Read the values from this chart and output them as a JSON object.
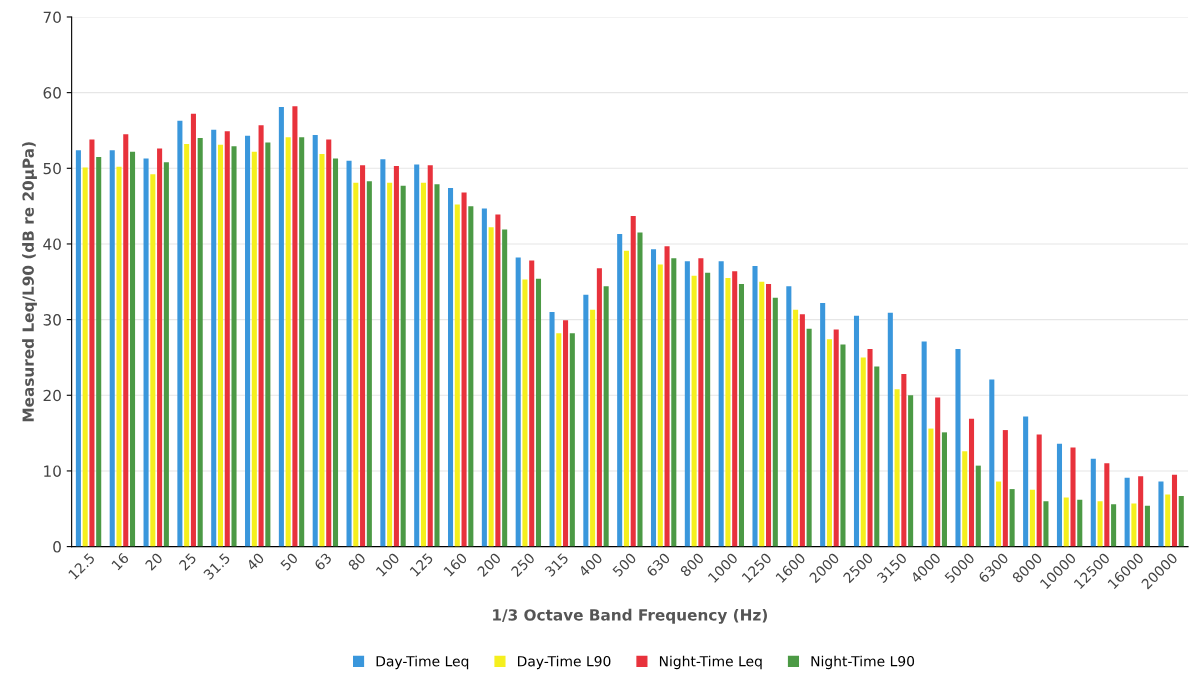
{
  "chart_data": {
    "type": "bar",
    "xlabel": "1/3 Octave Band Frequency (Hz)",
    "ylabel": "Measured Leq/L90 (dB re 20µPa)",
    "categories": [
      "12.5",
      "16",
      "20",
      "25",
      "31.5",
      "40",
      "50",
      "63",
      "80",
      "100",
      "125",
      "160",
      "200",
      "250",
      "315",
      "400",
      "500",
      "630",
      "800",
      "1000",
      "1250",
      "1600",
      "2000",
      "2500",
      "3150",
      "4000",
      "5000",
      "6300",
      "8000",
      "10000",
      "12500",
      "16000",
      "20000"
    ],
    "series": [
      {
        "name": "Day-Time Leq",
        "color": "#3a97dc",
        "values": [
          52.4,
          52.4,
          51.3,
          56.3,
          55.1,
          54.3,
          58.1,
          54.4,
          51.0,
          51.2,
          50.5,
          47.4,
          44.7,
          38.2,
          31.0,
          33.3,
          41.3,
          39.3,
          37.7,
          37.7,
          37.1,
          34.4,
          32.2,
          30.5,
          30.9,
          27.1,
          26.1,
          22.1,
          17.2,
          13.6,
          11.6,
          9.1,
          8.6
        ]
      },
      {
        "name": "Day-Time L90",
        "color": "#f5ef1e",
        "values": [
          50.1,
          50.2,
          49.2,
          53.2,
          53.1,
          52.2,
          54.1,
          51.9,
          48.1,
          48.1,
          48.1,
          45.2,
          42.2,
          35.3,
          28.2,
          31.3,
          39.1,
          37.3,
          35.8,
          35.5,
          35.0,
          31.3,
          27.4,
          25.0,
          20.8,
          15.6,
          12.6,
          8.6,
          7.5,
          6.5,
          6.0,
          5.7,
          6.9
        ]
      },
      {
        "name": "Night-Time Leq",
        "color": "#e8323c",
        "values": [
          53.8,
          54.5,
          52.6,
          57.2,
          54.9,
          55.7,
          58.2,
          53.8,
          50.4,
          50.3,
          50.4,
          46.8,
          43.9,
          37.8,
          29.9,
          36.8,
          43.7,
          39.7,
          38.1,
          36.4,
          34.7,
          30.7,
          28.7,
          26.1,
          22.8,
          19.7,
          16.9,
          15.4,
          14.8,
          13.1,
          11.0,
          9.3,
          9.5
        ]
      },
      {
        "name": "Night-Time L90",
        "color": "#4c9a45",
        "values": [
          51.5,
          52.2,
          50.8,
          54.0,
          52.9,
          53.4,
          54.1,
          51.3,
          48.3,
          47.7,
          47.9,
          45.0,
          41.9,
          35.4,
          28.2,
          34.4,
          41.5,
          38.1,
          36.2,
          34.7,
          32.9,
          28.8,
          26.7,
          23.8,
          20.0,
          15.1,
          10.7,
          7.6,
          6.0,
          6.2,
          5.6,
          5.4,
          6.7
        ]
      }
    ],
    "ylim": [
      0,
      70
    ],
    "yticks": [
      0,
      10,
      20,
      30,
      40,
      50,
      60,
      70
    ],
    "grid": "y",
    "legend": "bottom",
    "marker": "square"
  }
}
